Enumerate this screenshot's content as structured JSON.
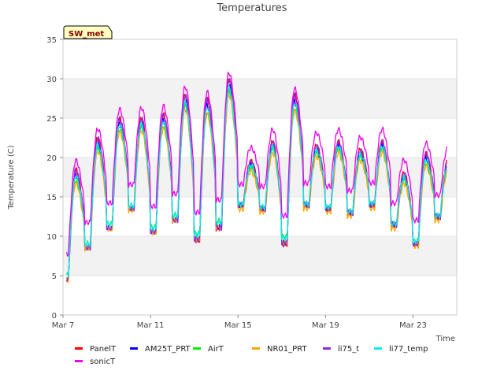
{
  "chart_data": {
    "type": "line",
    "title": "Temperatures",
    "badge": "SW_met",
    "xlabel": "Time",
    "ylabel": "Temperature (C)",
    "ylim": [
      0,
      35
    ],
    "yticks": [
      0,
      5,
      10,
      15,
      20,
      25,
      30,
      35
    ],
    "xlim": [
      "2024-03-07",
      "2024-03-25"
    ],
    "xticks": [
      {
        "date": "2024-03-07",
        "label": "Mar 7"
      },
      {
        "date": "2024-03-11",
        "label": "Mar 11"
      },
      {
        "date": "2024-03-15",
        "label": "Mar 15"
      },
      {
        "date": "2024-03-19",
        "label": "Mar 19"
      },
      {
        "date": "2024-03-23",
        "label": "Mar 23"
      }
    ],
    "grid": "horizontal bands",
    "legend_position": "bottom",
    "daily": {
      "dates": [
        "2024-03-07",
        "2024-03-08",
        "2024-03-09",
        "2024-03-10",
        "2024-03-11",
        "2024-03-12",
        "2024-03-13",
        "2024-03-14",
        "2024-03-15",
        "2024-03-16",
        "2024-03-17",
        "2024-03-18",
        "2024-03-19",
        "2024-03-20",
        "2024-03-21",
        "2024-03-22",
        "2024-03-23",
        "2024-03-24"
      ],
      "min_per_day": [
        4.5,
        8.5,
        11.0,
        13.5,
        10.5,
        12.0,
        9.5,
        11.0,
        14.0,
        13.5,
        9.0,
        14.0,
        13.5,
        13.0,
        14.0,
        11.5,
        9.0,
        12.5
      ],
      "max_per_day": [
        18.5,
        22.5,
        25.0,
        25.0,
        25.5,
        28.0,
        27.5,
        30.0,
        19.5,
        22.0,
        28.0,
        21.5,
        22.0,
        21.0,
        22.0,
        18.0,
        20.5,
        null
      ]
    },
    "series": [
      {
        "name": "PanelT",
        "color": "#ff0000",
        "offset": 0.0,
        "amp": 1.0
      },
      {
        "name": "AM25T_PRT",
        "color": "#0000ff",
        "offset": -0.3,
        "amp": 0.94
      },
      {
        "name": "AirT",
        "color": "#00ee00",
        "offset": -0.4,
        "amp": 0.86
      },
      {
        "name": "NR01_PRT",
        "color": "#ffa500",
        "offset": -0.9,
        "amp": 0.88
      },
      {
        "name": "li75_t",
        "color": "#8a2be2",
        "offset": 0.0,
        "amp": 0.99
      },
      {
        "name": "li77_temp",
        "color": "#00eeee",
        "offset": -0.2,
        "amp": 0.9
      },
      {
        "name": "sonicT",
        "color": "#ee00ee",
        "offset": 2.2,
        "amp": 0.85
      }
    ]
  }
}
